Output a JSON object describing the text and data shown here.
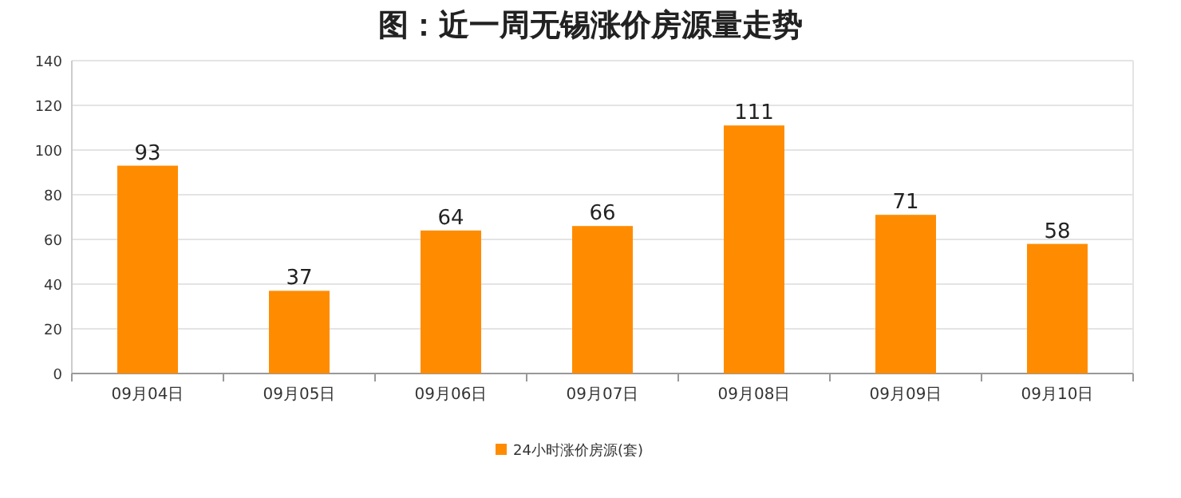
{
  "chart_data": {
    "type": "bar",
    "title": "图：近一周无锡涨价房源量走势",
    "categories": [
      "09月04日",
      "09月05日",
      "09月06日",
      "09月07日",
      "09月08日",
      "09月09日",
      "09月10日"
    ],
    "series": [
      {
        "name": "24小时涨价房源(套)",
        "color": "#ff8c00",
        "values": [
          93,
          37,
          64,
          66,
          111,
          71,
          58
        ]
      }
    ],
    "ylim": [
      0,
      140
    ],
    "yticks": [
      0,
      20,
      40,
      60,
      80,
      100,
      120,
      140
    ],
    "grid": "y",
    "legend": "bottom",
    "data_labels": true
  }
}
